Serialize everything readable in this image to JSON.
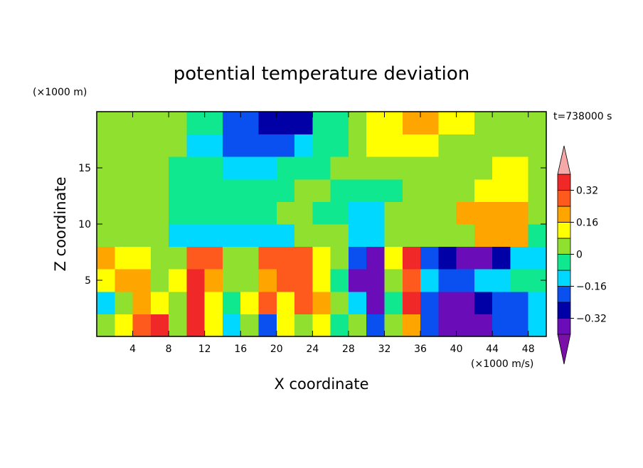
{
  "chart_data": {
    "type": "contour",
    "title": "potential temperature deviation",
    "x_label": "X coordinate",
    "y_label": "Z coordinate",
    "x_units": "(×1000 m/s)",
    "y_units": "(×1000 m)",
    "annotation": "t=738000 s",
    "xlim": [
      0,
      50
    ],
    "ylim": [
      0,
      20
    ],
    "xticks": [
      4,
      8,
      12,
      16,
      20,
      24,
      28,
      32,
      36,
      40,
      44,
      48
    ],
    "yticks": [
      5,
      10,
      15
    ],
    "x": [
      1,
      3,
      5,
      7,
      9,
      11,
      13,
      15,
      17,
      19,
      21,
      23,
      25,
      27,
      29,
      31,
      33,
      35,
      37,
      39,
      41,
      43,
      45,
      47,
      49
    ],
    "y": [
      1,
      3,
      5,
      7,
      9,
      11,
      13,
      15,
      17,
      19
    ],
    "z": [
      [
        0.04,
        0.12,
        0.28,
        0.36,
        0.04,
        0.36,
        0.12,
        -0.12,
        0.04,
        -0.2,
        0.12,
        0.04,
        0.12,
        -0.04,
        0.04,
        -0.2,
        0.04,
        0.2,
        -0.2,
        -0.36,
        -0.36,
        -0.36,
        -0.2,
        -0.2,
        -0.12
      ],
      [
        -0.12,
        0.04,
        0.2,
        0.12,
        0.04,
        0.36,
        0.12,
        -0.04,
        0.12,
        0.28,
        0.12,
        0.28,
        0.2,
        0.04,
        -0.12,
        -0.36,
        -0.04,
        0.36,
        -0.2,
        -0.36,
        -0.36,
        -0.28,
        -0.2,
        -0.2,
        -0.12
      ],
      [
        0.12,
        0.2,
        0.2,
        0.04,
        0.12,
        0.36,
        0.2,
        0.04,
        0.04,
        0.2,
        0.28,
        0.28,
        0.12,
        -0.04,
        -0.36,
        -0.36,
        0.04,
        0.28,
        -0.12,
        -0.2,
        -0.2,
        -0.12,
        -0.12,
        -0.04,
        -0.04
      ],
      [
        0.2,
        0.12,
        0.12,
        0.04,
        0.04,
        0.28,
        0.28,
        0.04,
        0.04,
        0.28,
        0.28,
        0.28,
        0.12,
        0.04,
        -0.2,
        -0.36,
        0.12,
        0.36,
        -0.2,
        -0.28,
        -0.36,
        -0.36,
        -0.28,
        -0.12,
        -0.12
      ],
      [
        0.04,
        0.04,
        0.04,
        0.04,
        -0.12,
        -0.12,
        -0.12,
        -0.12,
        -0.12,
        -0.12,
        -0.12,
        0.04,
        0.04,
        0.04,
        -0.12,
        -0.12,
        0.04,
        0.04,
        0.04,
        0.04,
        0.04,
        0.2,
        0.2,
        0.2,
        -0.04
      ],
      [
        0.04,
        0.04,
        0.04,
        0.04,
        -0.04,
        -0.04,
        -0.04,
        -0.04,
        -0.04,
        -0.04,
        0.04,
        0.04,
        -0.04,
        -0.04,
        -0.12,
        -0.12,
        0.04,
        0.04,
        0.04,
        0.04,
        0.2,
        0.2,
        0.2,
        0.2,
        0.04
      ],
      [
        0.04,
        0.04,
        0.04,
        0.04,
        -0.04,
        -0.04,
        -0.04,
        -0.04,
        -0.04,
        -0.04,
        -0.04,
        0.04,
        0.04,
        -0.04,
        -0.04,
        -0.04,
        -0.04,
        0.04,
        0.04,
        0.04,
        0.04,
        0.12,
        0.12,
        0.12,
        0.04
      ],
      [
        0.04,
        0.04,
        0.04,
        0.04,
        -0.04,
        -0.04,
        -0.04,
        -0.12,
        -0.12,
        -0.12,
        -0.04,
        -0.04,
        -0.04,
        0.04,
        0.04,
        0.04,
        0.04,
        0.04,
        0.04,
        0.04,
        0.04,
        0.04,
        0.12,
        0.12,
        0.04
      ],
      [
        0.04,
        0.04,
        0.04,
        0.04,
        0.04,
        -0.12,
        -0.12,
        -0.2,
        -0.2,
        -0.2,
        -0.2,
        -0.12,
        -0.04,
        -0.04,
        0.04,
        0.12,
        0.12,
        0.12,
        0.12,
        0.04,
        0.04,
        0.04,
        0.04,
        0.04,
        0.04
      ],
      [
        0.04,
        0.04,
        0.04,
        0.04,
        0.04,
        -0.04,
        -0.04,
        -0.2,
        -0.2,
        -0.28,
        -0.28,
        -0.28,
        -0.04,
        -0.04,
        0.04,
        0.12,
        0.12,
        0.2,
        0.2,
        0.12,
        0.12,
        0.04,
        0.04,
        0.04,
        0.04
      ]
    ],
    "levels": [
      -0.4,
      -0.32,
      -0.24,
      -0.16,
      -0.08,
      0,
      0.08,
      0.16,
      0.24,
      0.32,
      0.4
    ],
    "colors": [
      "#7a10a8",
      "#6a0cb8",
      "#0000a6",
      "#0a50f0",
      "#00d8ff",
      "#10e890",
      "#90e030",
      "#ffff00",
      "#ffa500",
      "#ff5a1e",
      "#f02828",
      "#f5a8a8"
    ],
    "colorbar_ticks": [
      {
        "value": 0.32,
        "label": "0.32"
      },
      {
        "value": 0.16,
        "label": "0.16"
      },
      0,
      {
        "value": -0.16,
        "label": "−0.16"
      },
      {
        "value": -0.32,
        "label": "−0.32"
      }
    ]
  }
}
